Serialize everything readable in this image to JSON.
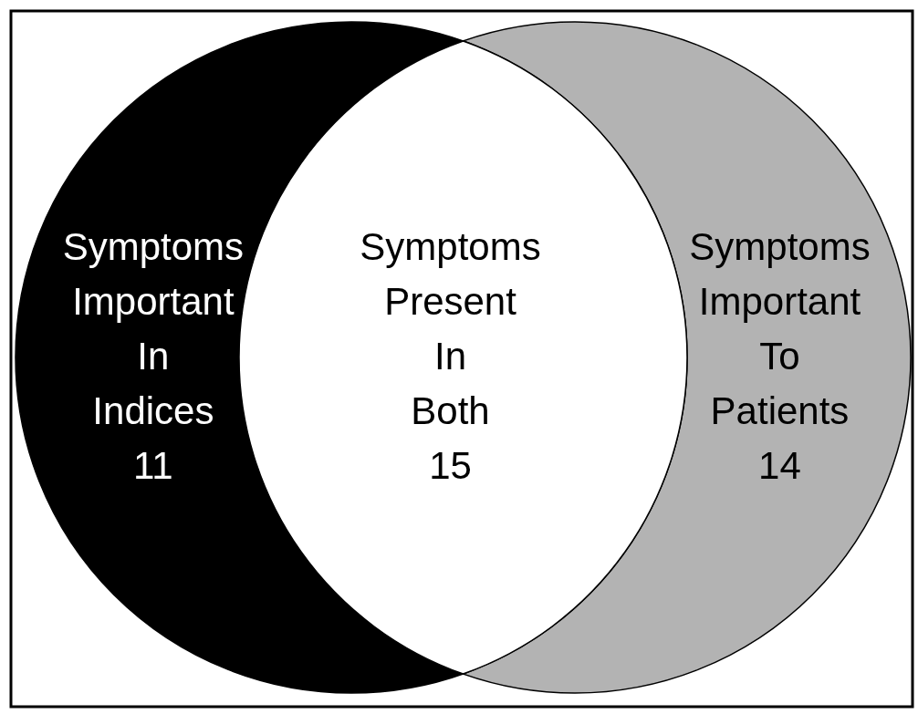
{
  "chart_data": {
    "type": "other",
    "categories": [
      "Symptoms Important In Indices",
      "Symptoms Present In Both",
      "Symptoms Important To Patients"
    ],
    "values": [
      11,
      15,
      14
    ],
    "colors": [
      "#000000",
      "#ffffff",
      "#b3b3b3"
    ],
    "data_labels": true
  }
}
